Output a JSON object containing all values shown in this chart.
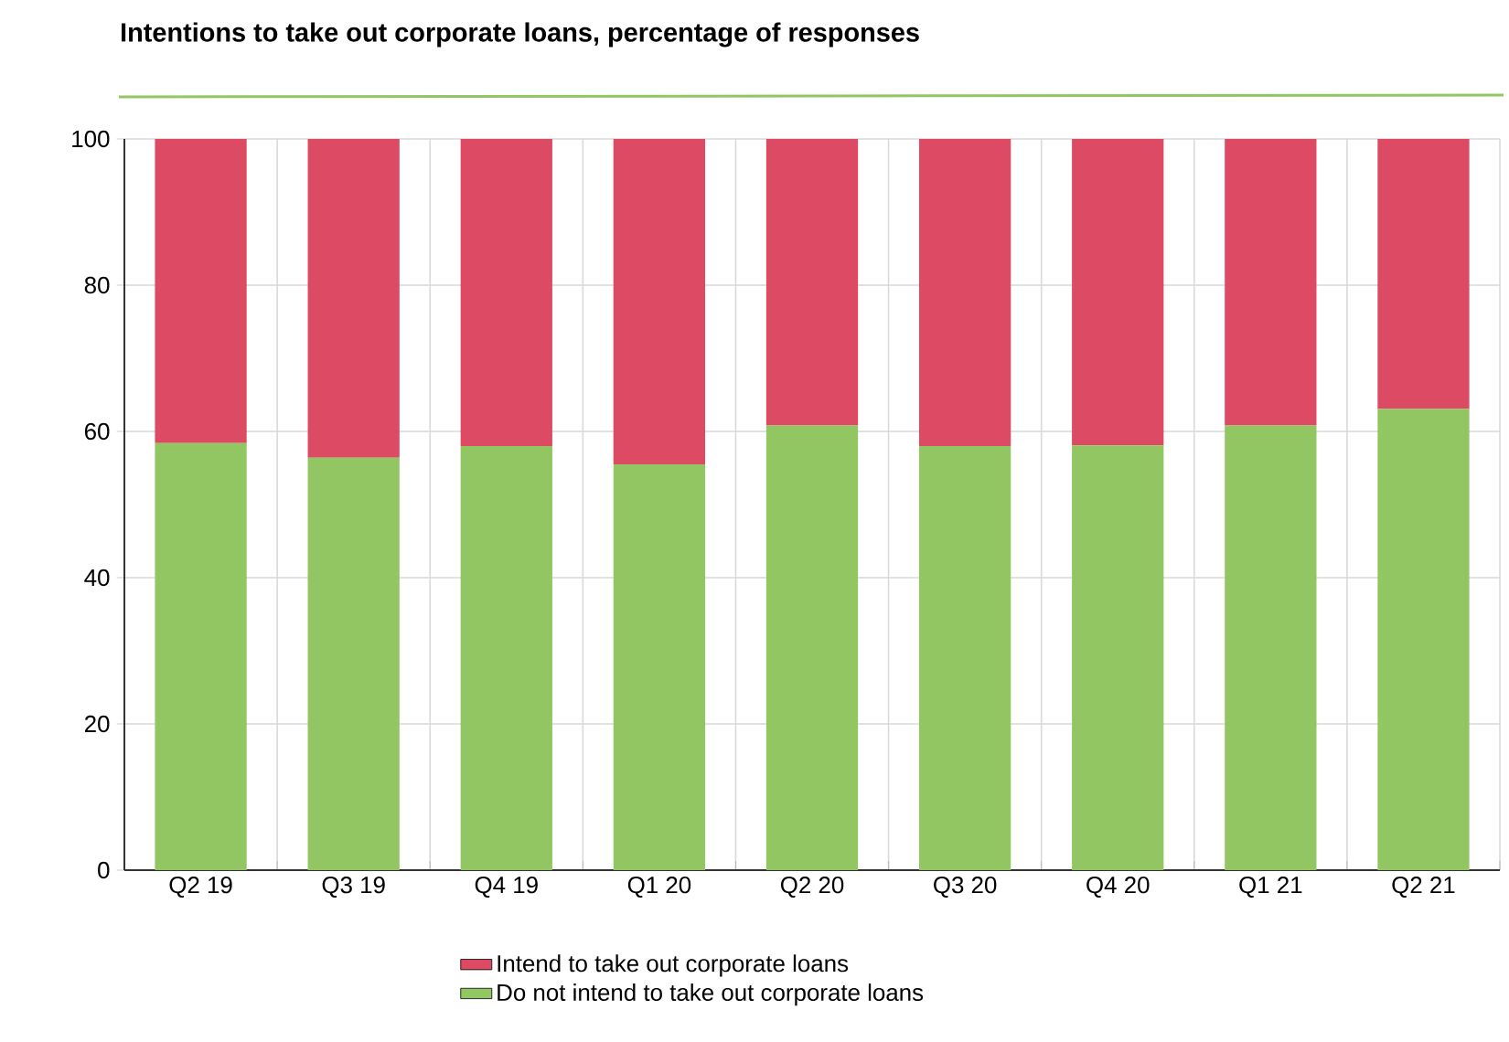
{
  "chart_data": {
    "type": "bar",
    "stacked": true,
    "title": "Intentions to take out corporate loans, percentage of responses",
    "categories": [
      "Q2 19",
      "Q3 19",
      "Q4 19",
      "Q1 20",
      "Q2 20",
      "Q3 20",
      "Q4 20",
      "Q1 21",
      "Q2 21"
    ],
    "series": [
      {
        "name": "Do not intend to take out corporate loans",
        "color": "#92c663",
        "values": [
          58.4,
          56.4,
          58,
          55.5,
          60.8,
          58,
          58.1,
          60.8,
          63.1
        ]
      },
      {
        "name": "Intend to take out corporate loans",
        "color": "#dc4a64",
        "values": [
          41.6,
          43.6,
          42,
          44.5,
          39.2,
          42,
          41.9,
          39.2,
          36.9
        ]
      }
    ],
    "ylim": [
      0,
      100
    ],
    "yticks": [
      0,
      20,
      40,
      60,
      80,
      100
    ],
    "grid": true,
    "legend": "bottom"
  }
}
